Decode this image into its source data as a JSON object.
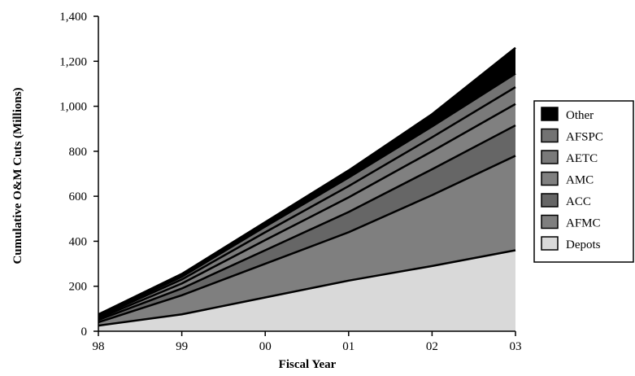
{
  "chart_data": {
    "type": "area",
    "stacked": true,
    "x": [
      "98",
      "99",
      "00",
      "01",
      "02",
      "03"
    ],
    "xlabel": "Fiscal Year",
    "ylabel": "Cumulative O&M Cuts (Millions)",
    "ylim": [
      0,
      1400
    ],
    "yticks": [
      "0",
      "200",
      "400",
      "600",
      "800",
      "1,000",
      "1,200",
      "1,400"
    ],
    "ytick_values": [
      0,
      200,
      400,
      600,
      800,
      1000,
      1200,
      1400
    ],
    "grid": false,
    "legend_position": "right",
    "series": [
      {
        "name": "Depots",
        "color": "#d9d9d9",
        "values": [
          25,
          75,
          150,
          225,
          290,
          360
        ]
      },
      {
        "name": "AFMC",
        "color": "#7f7f7f",
        "values": [
          15,
          85,
          150,
          215,
          315,
          420
        ]
      },
      {
        "name": "ACC",
        "color": "#666666",
        "values": [
          10,
          30,
          60,
          90,
          115,
          135
        ]
      },
      {
        "name": "AMC",
        "color": "#808080",
        "values": [
          7,
          22,
          45,
          65,
          80,
          95
        ]
      },
      {
        "name": "AETC",
        "color": "#7a7a7a",
        "values": [
          6,
          18,
          35,
          50,
          62,
          75
        ]
      },
      {
        "name": "AFSPC",
        "color": "#737373",
        "values": [
          5,
          12,
          25,
          38,
          48,
          60
        ]
      },
      {
        "name": "Other",
        "color": "#000000",
        "values": [
          7,
          13,
          20,
          32,
          55,
          115
        ]
      }
    ]
  }
}
